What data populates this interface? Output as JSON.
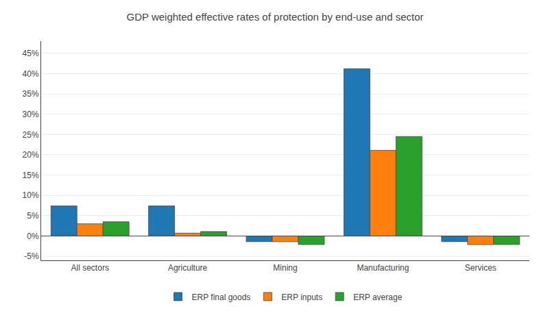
{
  "chart_data": {
    "type": "bar",
    "title": "GDP weighted effective rates of protection by end-use and sector",
    "categories": [
      "All sectors",
      "Agriculture",
      "Mining",
      "Manufacturing",
      "Services"
    ],
    "series": [
      {
        "name": "ERP final goods",
        "values": [
          0.074,
          0.074,
          -0.014,
          0.412,
          -0.014
        ]
      },
      {
        "name": "ERP inputs",
        "values": [
          0.03,
          0.007,
          -0.014,
          0.211,
          -0.021
        ]
      },
      {
        "name": "ERP average",
        "values": [
          0.035,
          0.011,
          -0.021,
          0.245,
          -0.021
        ]
      }
    ],
    "ylim": [
      -0.06,
      0.48
    ],
    "yticks": [
      {
        "value": -0.05,
        "label": "-5%"
      },
      {
        "value": 0.0,
        "label": "0%"
      },
      {
        "value": 0.05,
        "label": "5%"
      },
      {
        "value": 0.1,
        "label": "10%"
      },
      {
        "value": 0.15,
        "label": "15%"
      },
      {
        "value": 0.2,
        "label": "20%"
      },
      {
        "value": 0.25,
        "label": "25%"
      },
      {
        "value": 0.3,
        "label": "30%"
      },
      {
        "value": 0.35,
        "label": "35%"
      },
      {
        "value": 0.4,
        "label": "40%"
      },
      {
        "value": 0.45,
        "label": "45%"
      }
    ],
    "grid": true,
    "legend": "bottom"
  }
}
